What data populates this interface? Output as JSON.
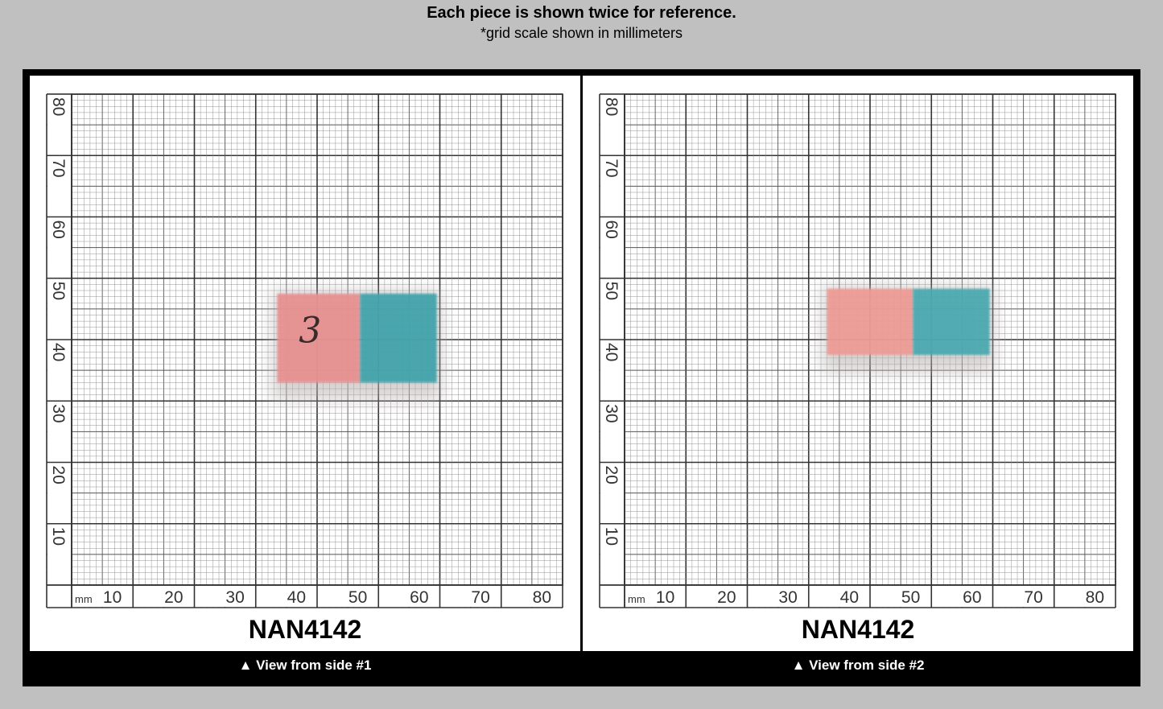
{
  "header": {
    "title": "Each piece is shown twice for reference.",
    "subtitle": "*grid scale shown in millimeters"
  },
  "grid": {
    "unit_label": "mm",
    "x_ticks": [
      "10",
      "20",
      "30",
      "40",
      "50",
      "60",
      "70",
      "80"
    ],
    "y_ticks": [
      "10",
      "20",
      "30",
      "40",
      "50",
      "60",
      "70",
      "80"
    ]
  },
  "panels": [
    {
      "piece_label": "NAN4142",
      "caption": "▲ View from side #1",
      "handwritten_mark": "3",
      "piece_colors": {
        "pink": "#e8908f",
        "teal": "#3fa3ab"
      }
    },
    {
      "piece_label": "NAN4142",
      "caption": "▲ View from side #2",
      "piece_colors": {
        "pink": "#ee9a94",
        "teal": "#4aa9b0"
      }
    }
  ]
}
